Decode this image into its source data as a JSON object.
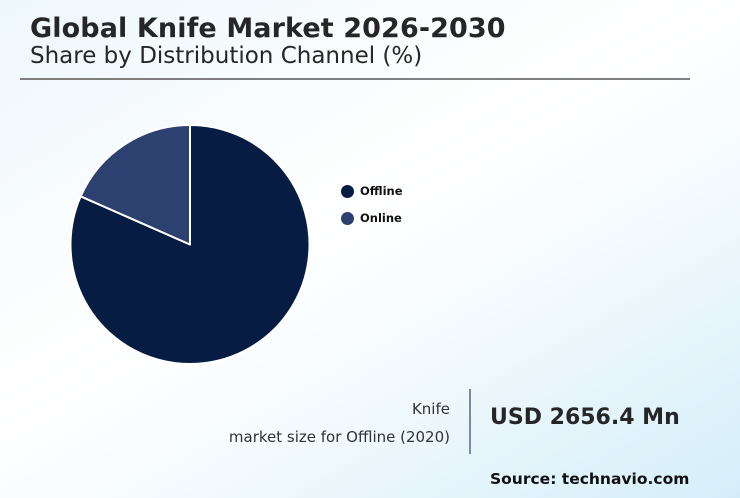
{
  "header": {
    "title": "Global Knife Market 2026-2030",
    "subtitle": "Share by Distribution Channel (%)"
  },
  "legend": [
    {
      "label": "Offline",
      "color": "#071c42"
    },
    {
      "label": "Online",
      "color": "#2c4170"
    }
  ],
  "kpi": {
    "label_line1": "Knife",
    "label_line2": "market size for Offline (2020)",
    "value": "USD 2656.4 Mn"
  },
  "source": "Source: technavio.com",
  "chart_data": {
    "type": "pie",
    "title": "Global Knife Market 2026-2030",
    "subtitle": "Share by Distribution Channel (%)",
    "categories": [
      "Offline",
      "Online"
    ],
    "values": [
      81.6,
      18.4
    ],
    "colors": [
      "#071c42",
      "#2c4170"
    ],
    "start_angle": "12 o'clock",
    "direction": "clockwise (Offline first)",
    "legend_position": "right",
    "annotation": "Knife market size for Offline (2020): USD 2656.4 Mn"
  }
}
